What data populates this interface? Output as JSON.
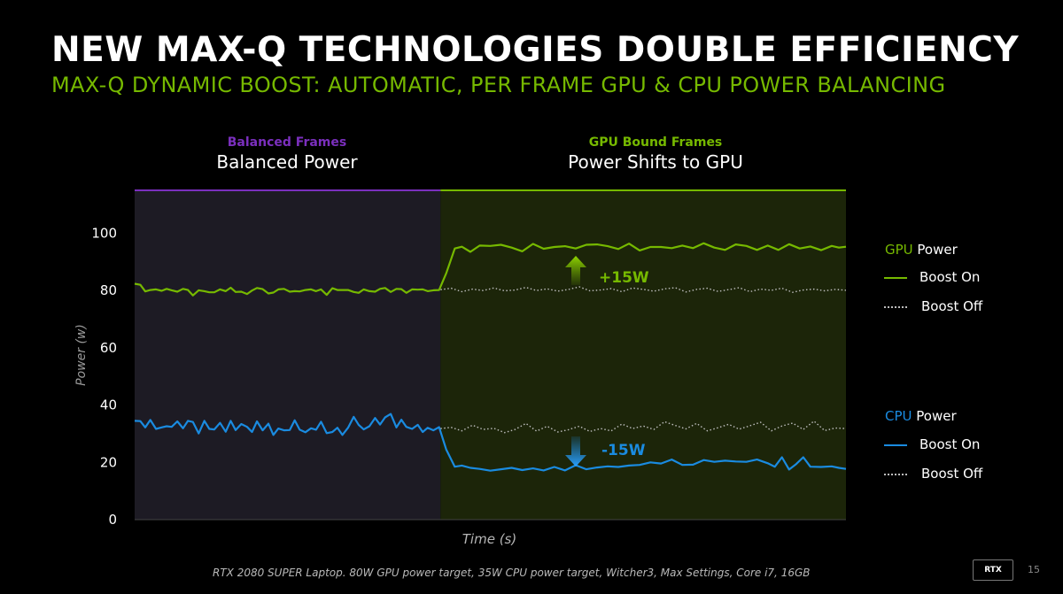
{
  "header": {
    "title": "NEW MAX-Q TECHNOLOGIES DOUBLE EFFICIENCY",
    "subtitle": "MAX-Q DYNAMIC BOOST: AUTOMATIC, PER FRAME GPU & CPU POWER BALANCING"
  },
  "regions": {
    "left": {
      "small": "Balanced Frames",
      "big": "Balanced Power"
    },
    "right": {
      "small": "GPU Bound Frames",
      "big": "Power Shifts to GPU"
    }
  },
  "colors": {
    "background": "#000000",
    "gpu_green": "#76b900",
    "cpu_blue": "#1a8be0",
    "balanced_purple": "#7b2fbe",
    "left_panel": "#1d1b24",
    "right_panel": "#1c2509",
    "dotted_gray": "#bdbdbd"
  },
  "legend": {
    "gpu": {
      "prefix": "GPU",
      "suffix": " Power",
      "on": "Boost On",
      "off": "Boost Off"
    },
    "cpu": {
      "prefix": "CPU",
      "suffix": " Power",
      "on": "Boost On",
      "off": "Boost Off"
    }
  },
  "chart_data": {
    "type": "line",
    "title": "",
    "xlabel": "Time (s)",
    "ylabel": "Power (w)",
    "ylim": [
      0,
      115
    ],
    "yticks": [
      0,
      20,
      40,
      60,
      80,
      100
    ],
    "xlim": [
      0,
      1
    ],
    "split_x": 0.43,
    "annotations": [
      {
        "text": "+15W",
        "direction": "up",
        "series": "gpu"
      },
      {
        "text": "-15W",
        "direction": "down",
        "series": "cpu"
      }
    ],
    "series": [
      {
        "name": "GPU Power Boost On",
        "color": "#76b900",
        "style": "solid",
        "x": [
          0.0,
          0.008,
          0.015,
          0.022,
          0.03,
          0.038,
          0.045,
          0.052,
          0.06,
          0.068,
          0.075,
          0.082,
          0.09,
          0.098,
          0.105,
          0.112,
          0.12,
          0.128,
          0.135,
          0.142,
          0.15,
          0.158,
          0.165,
          0.172,
          0.18,
          0.188,
          0.195,
          0.202,
          0.21,
          0.218,
          0.225,
          0.232,
          0.24,
          0.248,
          0.255,
          0.262,
          0.27,
          0.278,
          0.285,
          0.292,
          0.3,
          0.308,
          0.315,
          0.322,
          0.33,
          0.338,
          0.345,
          0.352,
          0.36,
          0.368,
          0.375,
          0.382,
          0.39,
          0.398,
          0.405,
          0.412,
          0.42,
          0.428,
          0.438,
          0.45,
          0.46,
          0.472,
          0.485,
          0.5,
          0.515,
          0.53,
          0.545,
          0.56,
          0.575,
          0.59,
          0.605,
          0.62,
          0.635,
          0.65,
          0.665,
          0.68,
          0.695,
          0.71,
          0.725,
          0.74,
          0.755,
          0.77,
          0.785,
          0.8,
          0.815,
          0.83,
          0.845,
          0.86,
          0.875,
          0.89,
          0.905,
          0.92,
          0.935,
          0.95,
          0.965,
          0.98,
          0.99,
          1.0
        ],
        "values": [
          82.4,
          82,
          79.7,
          80.2,
          80.4,
          79.9,
          80.6,
          80.1,
          79.6,
          80.6,
          80.2,
          78.3,
          80.1,
          79.8,
          79.4,
          79.4,
          80.4,
          79.8,
          81,
          79.5,
          79.6,
          78.8,
          80,
          80.9,
          80.5,
          79,
          79.3,
          80.4,
          80.6,
          79.6,
          79.8,
          79.7,
          80.2,
          80.4,
          79.8,
          80.4,
          78.5,
          80.8,
          80.2,
          80.2,
          80.2,
          79.5,
          79.2,
          80.4,
          79.8,
          79.6,
          80.6,
          80.9,
          79.5,
          80.6,
          80.5,
          79.2,
          80.4,
          80.3,
          80.4,
          79.8,
          80.1,
          80.2,
          86,
          94.7,
          95.3,
          93.5,
          95.7,
          95.6,
          96,
          95,
          93.7,
          96.3,
          94.6,
          95.2,
          95.5,
          94.7,
          96,
          96.1,
          95.5,
          94.5,
          96.4,
          94,
          95.2,
          95.2,
          94.8,
          95.7,
          94.8,
          96.5,
          95,
          94.2,
          96.1,
          95.6,
          94.2,
          95.7,
          94.2,
          96.2,
          94.7,
          95.4,
          94.1,
          95.6,
          95,
          95.3
        ]
      },
      {
        "name": "GPU Power Boost Off",
        "color": "#bdbdbd",
        "style": "dotted",
        "x": [
          0.43,
          0.445,
          0.46,
          0.475,
          0.49,
          0.505,
          0.52,
          0.535,
          0.55,
          0.565,
          0.58,
          0.595,
          0.61,
          0.625,
          0.64,
          0.655,
          0.67,
          0.685,
          0.7,
          0.715,
          0.73,
          0.745,
          0.76,
          0.775,
          0.79,
          0.805,
          0.82,
          0.835,
          0.85,
          0.865,
          0.88,
          0.895,
          0.91,
          0.925,
          0.94,
          0.955,
          0.97,
          0.985,
          1.0
        ],
        "values": [
          80.3,
          80.8,
          79.6,
          80.5,
          80,
          80.9,
          79.9,
          80.2,
          81.1,
          80,
          80.6,
          79.8,
          80.4,
          81.3,
          79.9,
          80.2,
          80.7,
          79.6,
          80.9,
          80.4,
          79.8,
          80.6,
          81,
          79.5,
          80.4,
          80.8,
          79.7,
          80.3,
          81,
          79.6,
          80.5,
          80.1,
          80.8,
          79.4,
          80.2,
          80.5,
          79.9,
          80.4,
          80.1
        ]
      },
      {
        "name": "CPU Power Boost On",
        "color": "#1a8be0",
        "style": "solid",
        "x": [
          0.0,
          0.008,
          0.015,
          0.022,
          0.03,
          0.038,
          0.045,
          0.052,
          0.06,
          0.068,
          0.075,
          0.082,
          0.09,
          0.098,
          0.105,
          0.112,
          0.12,
          0.128,
          0.135,
          0.142,
          0.15,
          0.158,
          0.165,
          0.172,
          0.18,
          0.188,
          0.195,
          0.202,
          0.21,
          0.218,
          0.225,
          0.232,
          0.24,
          0.248,
          0.255,
          0.262,
          0.27,
          0.278,
          0.285,
          0.292,
          0.3,
          0.308,
          0.315,
          0.322,
          0.33,
          0.338,
          0.345,
          0.352,
          0.36,
          0.368,
          0.375,
          0.382,
          0.39,
          0.398,
          0.405,
          0.412,
          0.42,
          0.428,
          0.438,
          0.45,
          0.46,
          0.472,
          0.485,
          0.5,
          0.515,
          0.53,
          0.545,
          0.56,
          0.575,
          0.59,
          0.605,
          0.62,
          0.635,
          0.65,
          0.665,
          0.68,
          0.695,
          0.71,
          0.725,
          0.74,
          0.755,
          0.77,
          0.785,
          0.8,
          0.815,
          0.83,
          0.845,
          0.86,
          0.875,
          0.89,
          0.9,
          0.91,
          0.92,
          0.93,
          0.94,
          0.95,
          0.965,
          0.98,
          0.99,
          1.0
        ],
        "values": [
          34.5,
          34.4,
          32.2,
          34.8,
          31.7,
          32.2,
          32.6,
          32.4,
          34.3,
          31.9,
          34.5,
          34.1,
          30.1,
          34.5,
          31.7,
          31.5,
          33.8,
          30.7,
          34.5,
          31.3,
          33.4,
          32.4,
          30.6,
          34.3,
          31.2,
          33.5,
          29.6,
          31.8,
          31.2,
          31.3,
          34.7,
          31.4,
          30.5,
          31.9,
          31.4,
          34.2,
          30.2,
          30.6,
          32.1,
          29.6,
          32.1,
          35.9,
          33.1,
          31.5,
          32.6,
          35.5,
          33.2,
          35.7,
          36.9,
          32.2,
          34.9,
          32.4,
          31.7,
          33.1,
          30.6,
          32.1,
          31.2,
          32.3,
          24.5,
          18.5,
          18.9,
          18.1,
          17.7,
          17.1,
          17.6,
          18.1,
          17.3,
          17.9,
          17.2,
          18.4,
          17.2,
          19,
          17.6,
          18.2,
          18.6,
          18.4,
          18.9,
          19.1,
          20,
          19.6,
          21,
          19.1,
          19.2,
          20.8,
          20.2,
          20.6,
          20.3,
          20.2,
          21,
          19.7,
          18.5,
          21.8,
          17.5,
          19.4,
          21.8,
          18.5,
          18.4,
          18.6,
          18.1,
          17.7
        ]
      },
      {
        "name": "CPU Power Boost Off",
        "color": "#bdbdbd",
        "style": "dotted",
        "x": [
          0.43,
          0.445,
          0.46,
          0.475,
          0.49,
          0.505,
          0.52,
          0.535,
          0.55,
          0.565,
          0.58,
          0.595,
          0.61,
          0.625,
          0.64,
          0.655,
          0.67,
          0.685,
          0.7,
          0.715,
          0.73,
          0.745,
          0.76,
          0.775,
          0.79,
          0.805,
          0.82,
          0.835,
          0.85,
          0.865,
          0.88,
          0.895,
          0.91,
          0.925,
          0.94,
          0.955,
          0.97,
          0.985,
          1.0
        ],
        "values": [
          31.8,
          32.2,
          31,
          33,
          31.5,
          31.9,
          30.4,
          31.5,
          33.6,
          30.9,
          32.6,
          30.6,
          31.4,
          32.6,
          30.8,
          31.8,
          31,
          33.4,
          31.8,
          32.7,
          31.5,
          34.2,
          32.9,
          31.7,
          33.6,
          31,
          32.1,
          33.3,
          31.6,
          32.8,
          34,
          31,
          32.7,
          33.7,
          31.5,
          34.4,
          31.1,
          32,
          31.8
        ]
      }
    ]
  },
  "footnote": "RTX 2080 SUPER Laptop. 80W GPU power target, 35W CPU power target, Witcher3, Max Settings, Core i7, 16GB",
  "logo_text": "RTX",
  "page_number": "15"
}
